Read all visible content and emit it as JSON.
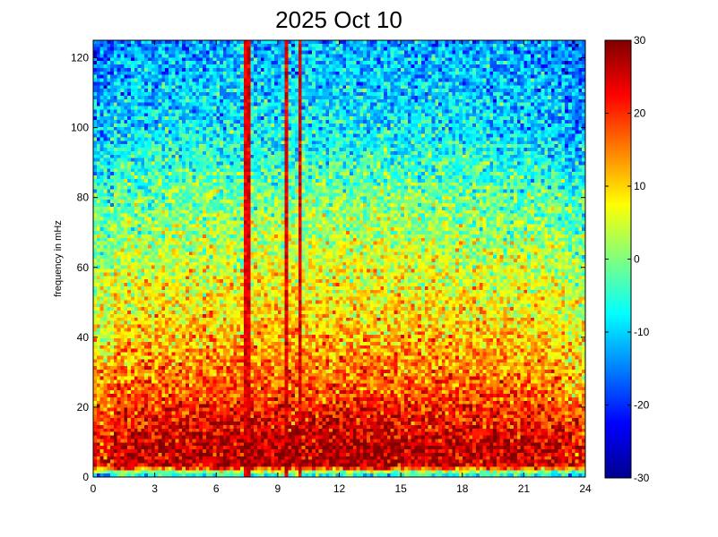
{
  "chart_data": {
    "type": "heatmap",
    "title": "2025 Oct 10",
    "xlabel": "",
    "ylabel": "frequency in mHz",
    "xlim": [
      0,
      24
    ],
    "ylim": [
      0,
      125
    ],
    "x_ticks": [
      0,
      3,
      6,
      9,
      12,
      15,
      18,
      21,
      24
    ],
    "y_ticks": [
      0,
      20,
      40,
      60,
      80,
      100,
      120
    ],
    "x_tick_labels": [
      "0",
      "3",
      "6",
      "9",
      "12",
      "15",
      "18",
      "21",
      "24"
    ],
    "y_tick_labels": [
      "0",
      "20",
      "40",
      "60",
      "80",
      "100",
      "120"
    ],
    "colorbar": {
      "colormap": "jet",
      "clim": [
        -30,
        30
      ],
      "ticks": [
        30,
        20,
        10,
        0,
        -10,
        -20,
        -30
      ],
      "tick_labels": [
        "30",
        "20",
        "10",
        "0",
        "-10",
        "-20",
        "-30"
      ]
    },
    "grid": false,
    "legend": "none",
    "grid_shape": {
      "x_bins": 144,
      "y_bins": 126
    },
    "power_profile_db": [
      {
        "freq_mhz": 1,
        "power": -5
      },
      {
        "freq_mhz": 3,
        "power": 27
      },
      {
        "freq_mhz": 8,
        "power": 28
      },
      {
        "freq_mhz": 15,
        "power": 24
      },
      {
        "freq_mhz": 25,
        "power": 18
      },
      {
        "freq_mhz": 40,
        "power": 12
      },
      {
        "freq_mhz": 60,
        "power": 6
      },
      {
        "freq_mhz": 80,
        "power": 0
      },
      {
        "freq_mhz": 100,
        "power": -8
      },
      {
        "freq_mhz": 125,
        "power": -12
      }
    ],
    "broadband_bursts": [
      {
        "hour": 7.5,
        "top_freq_mhz": 125
      },
      {
        "hour": 9.4,
        "top_freq_mhz": 125
      },
      {
        "hour": 10.1,
        "top_freq_mhz": 125
      }
    ]
  }
}
